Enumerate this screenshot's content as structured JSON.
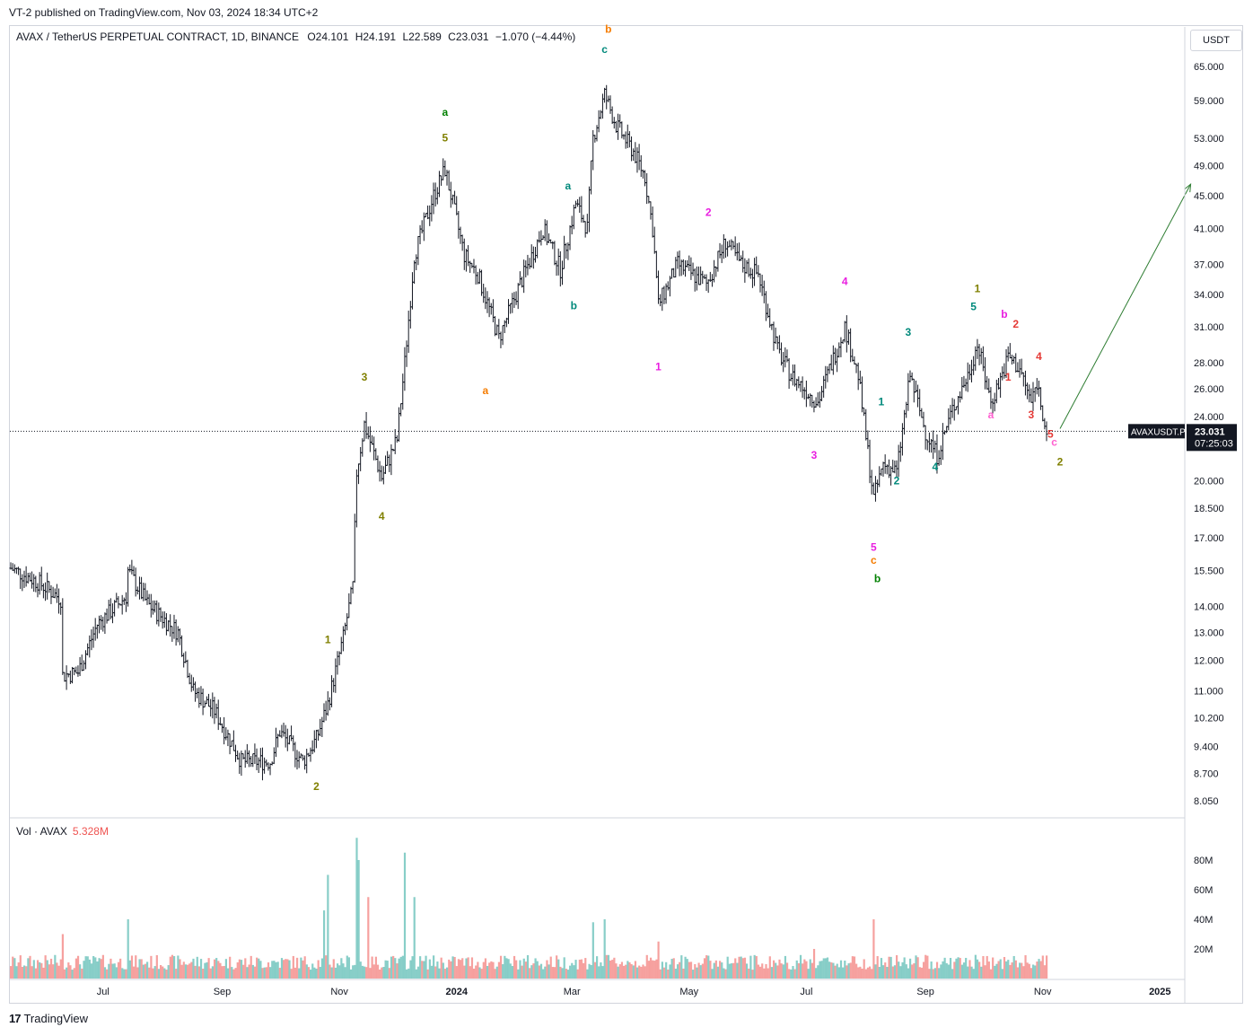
{
  "header": {
    "published": "VT-2 published on TradingView.com, Nov 03, 2024 18:34 UTC+2"
  },
  "legend": {
    "symbol": "AVAX / TetherUS PERPETUAL CONTRACT, 1D, BINANCE",
    "open": "O24.101",
    "high": "H24.191",
    "low": "L22.589",
    "close": "C23.031",
    "change": "−1.070 (−4.44%)"
  },
  "volume_legend": {
    "label": "Vol · AVAX",
    "value": "5.328M"
  },
  "currency_button": "USDT",
  "price_tag": {
    "symbol": "AVAXUSDT.P",
    "price": "23.031",
    "countdown": "07:25:03"
  },
  "footer": {
    "brand": "TradingView"
  },
  "colors": {
    "bar": "#131722",
    "vol_up": "#26a69a",
    "vol_down": "#ef5350",
    "olive": "#808000",
    "green": "#008000",
    "orange": "#f57c00",
    "teal": "#00897b",
    "magenta": "#e91ee0",
    "red": "#e53935",
    "pink": "#ff5fd0",
    "arrow": "#2e7d32"
  },
  "chart_data": {
    "type": "ohlc",
    "log_scale": true,
    "price_ticks": [
      "65.000",
      "59.000",
      "53.000",
      "49.000",
      "45.000",
      "41.000",
      "37.000",
      "34.000",
      "31.000",
      "28.000",
      "26.000",
      "24.000",
      "20.000",
      "18.500",
      "17.000",
      "15.500",
      "14.000",
      "13.000",
      "12.000",
      "11.000",
      "10.200",
      "9.400",
      "8.700",
      "8.050"
    ],
    "volume_ticks": [
      "80M",
      "60M",
      "40M",
      "20M"
    ],
    "x_labels": [
      "Jul",
      "Sep",
      "Nov",
      "2024",
      "Mar",
      "May",
      "Jul",
      "Sep",
      "Nov",
      "2025"
    ],
    "date_start": "2023-05-14",
    "date_end": "2024-11-03",
    "close_path": [
      [
        "2023-05-14",
        15.6
      ],
      [
        "2023-05-28",
        15.0
      ],
      [
        "2023-06-09",
        14.3
      ],
      [
        "2023-06-10",
        11.5
      ],
      [
        "2023-06-18",
        11.6
      ],
      [
        "2023-06-28",
        13.3
      ],
      [
        "2023-07-13",
        14.4
      ],
      [
        "2023-07-14",
        15.5
      ],
      [
        "2023-07-24",
        14.1
      ],
      [
        "2023-08-09",
        13.0
      ],
      [
        "2023-08-17",
        11.0
      ],
      [
        "2023-08-28",
        10.4
      ],
      [
        "2023-09-11",
        9.0
      ],
      [
        "2023-09-26",
        9.0
      ],
      [
        "2023-10-01",
        9.8
      ],
      [
        "2023-10-13",
        9.0
      ],
      [
        "2023-10-20",
        9.6
      ],
      [
        "2023-10-26",
        10.6
      ],
      [
        "2023-11-03",
        12.8
      ],
      [
        "2023-11-08",
        14.8
      ],
      [
        "2023-11-10",
        20.5
      ],
      [
        "2023-11-14",
        23.5
      ],
      [
        "2023-11-23",
        20.2
      ],
      [
        "2023-12-01",
        22.5
      ],
      [
        "2023-12-05",
        28.0
      ],
      [
        "2023-12-10",
        38.0
      ],
      [
        "2023-12-20",
        45.0
      ],
      [
        "2023-12-26",
        48.5
      ],
      [
        "2024-01-05",
        38.0
      ],
      [
        "2024-01-12",
        36.0
      ],
      [
        "2024-01-23",
        30.0
      ],
      [
        "2024-02-03",
        35.0
      ],
      [
        "2024-02-15",
        41.0
      ],
      [
        "2024-02-24",
        36.5
      ],
      [
        "2024-03-03",
        44.0
      ],
      [
        "2024-03-09",
        41.0
      ],
      [
        "2024-03-12",
        53.0
      ],
      [
        "2024-03-18",
        60.0
      ],
      [
        "2024-03-24",
        55.0
      ],
      [
        "2024-04-02",
        51.0
      ],
      [
        "2024-04-08",
        47.5
      ],
      [
        "2024-04-12",
        41.0
      ],
      [
        "2024-04-15",
        33.0
      ],
      [
        "2024-04-25",
        37.0
      ],
      [
        "2024-05-10",
        35.0
      ],
      [
        "2024-05-20",
        39.5
      ],
      [
        "2024-05-28",
        37.0
      ],
      [
        "2024-06-06",
        36.0
      ],
      [
        "2024-06-16",
        29.0
      ],
      [
        "2024-06-23",
        27.0
      ],
      [
        "2024-06-30",
        26.0
      ],
      [
        "2024-07-07",
        25.0
      ],
      [
        "2024-07-13",
        27.5
      ],
      [
        "2024-07-21",
        31.0
      ],
      [
        "2024-07-28",
        27.0
      ],
      [
        "2024-08-05",
        19.0
      ],
      [
        "2024-08-10",
        21.0
      ],
      [
        "2024-08-17",
        20.5
      ],
      [
        "2024-08-24",
        27.0
      ],
      [
        "2024-09-01",
        23.0
      ],
      [
        "2024-09-07",
        21.5
      ],
      [
        "2024-09-15",
        24.5
      ],
      [
        "2024-09-23",
        27.0
      ],
      [
        "2024-09-28",
        29.5
      ],
      [
        "2024-10-05",
        25.0
      ],
      [
        "2024-10-12",
        27.5
      ],
      [
        "2024-10-14",
        28.5
      ],
      [
        "2024-10-20",
        27.5
      ],
      [
        "2024-10-26",
        25.0
      ],
      [
        "2024-10-29",
        26.5
      ],
      [
        "2024-11-03",
        23.0
      ]
    ],
    "volume_spikes": [
      [
        "2023-06-10",
        30
      ],
      [
        "2023-07-14",
        40
      ],
      [
        "2023-10-24",
        46
      ],
      [
        "2023-10-26",
        70
      ],
      [
        "2023-11-10",
        95
      ],
      [
        "2023-11-11",
        80
      ],
      [
        "2023-11-16",
        55
      ],
      [
        "2023-12-05",
        85
      ],
      [
        "2023-12-10",
        55
      ],
      [
        "2024-03-12",
        38
      ],
      [
        "2024-03-18",
        40
      ],
      [
        "2024-04-15",
        25
      ],
      [
        "2024-08-05",
        40
      ],
      [
        "2024-07-05",
        20
      ]
    ],
    "wave_labels": [
      {
        "text": "1",
        "date": "2023-10-26",
        "price": 12.6,
        "color": "olive"
      },
      {
        "text": "2",
        "date": "2023-10-20",
        "price": 8.3,
        "color": "olive"
      },
      {
        "text": "3",
        "date": "2023-11-14",
        "price": 26.6,
        "color": "olive"
      },
      {
        "text": "4",
        "date": "2023-11-23",
        "price": 17.9,
        "color": "olive"
      },
      {
        "text": "5",
        "date": "2023-12-26",
        "price": 52.5,
        "color": "olive"
      },
      {
        "text": "a",
        "date": "2023-12-26",
        "price": 56.5,
        "color": "green"
      },
      {
        "text": "a",
        "date": "2024-01-16",
        "price": 25.6,
        "color": "orange"
      },
      {
        "text": "a",
        "date": "2024-02-28",
        "price": 45.8,
        "color": "teal"
      },
      {
        "text": "b",
        "date": "2024-03-02",
        "price": 32.6,
        "color": "teal"
      },
      {
        "text": "c",
        "date": "2024-03-18",
        "price": 67.5,
        "color": "teal"
      },
      {
        "text": "b",
        "date": "2024-03-20",
        "price": 71.5,
        "color": "orange"
      },
      {
        "text": "1",
        "date": "2024-04-15",
        "price": 27.4,
        "color": "magenta"
      },
      {
        "text": "2",
        "date": "2024-05-11",
        "price": 42.5,
        "color": "magenta"
      },
      {
        "text": "3",
        "date": "2024-07-05",
        "price": 21.3,
        "color": "magenta"
      },
      {
        "text": "4",
        "date": "2024-07-21",
        "price": 34.9,
        "color": "magenta"
      },
      {
        "text": "5",
        "date": "2024-08-05",
        "price": 16.4,
        "color": "magenta"
      },
      {
        "text": "c",
        "date": "2024-08-05",
        "price": 15.8,
        "color": "orange"
      },
      {
        "text": "b",
        "date": "2024-08-07",
        "price": 15.0,
        "color": "green"
      },
      {
        "text": "1",
        "date": "2024-08-09",
        "price": 24.8,
        "color": "teal"
      },
      {
        "text": "2",
        "date": "2024-08-17",
        "price": 19.8,
        "color": "teal"
      },
      {
        "text": "3",
        "date": "2024-08-23",
        "price": 30.2,
        "color": "teal"
      },
      {
        "text": "4",
        "date": "2024-09-06",
        "price": 20.6,
        "color": "teal"
      },
      {
        "text": "5",
        "date": "2024-09-26",
        "price": 32.5,
        "color": "teal"
      },
      {
        "text": "1",
        "date": "2024-09-28",
        "price": 34.2,
        "color": "olive"
      },
      {
        "text": "a",
        "date": "2024-10-05",
        "price": 23.9,
        "color": "pink"
      },
      {
        "text": "b",
        "date": "2024-10-12",
        "price": 31.8,
        "color": "magenta"
      },
      {
        "text": "1",
        "date": "2024-10-14",
        "price": 26.6,
        "color": "red"
      },
      {
        "text": "2",
        "date": "2024-10-18",
        "price": 30.9,
        "color": "red"
      },
      {
        "text": "3",
        "date": "2024-10-26",
        "price": 23.9,
        "color": "red"
      },
      {
        "text": "4",
        "date": "2024-10-30",
        "price": 28.2,
        "color": "red"
      },
      {
        "text": "5",
        "date": "2024-11-05",
        "price": 22.6,
        "color": "red"
      },
      {
        "text": "c",
        "date": "2024-11-07",
        "price": 22.1,
        "color": "pink"
      },
      {
        "text": "2",
        "date": "2024-11-10",
        "price": 20.9,
        "color": "olive"
      }
    ],
    "projection_arrow": {
      "from": [
        "2024-11-10",
        23.2
      ],
      "to": [
        "2025-01-17",
        46.5
      ]
    },
    "last_price": 23.031
  }
}
